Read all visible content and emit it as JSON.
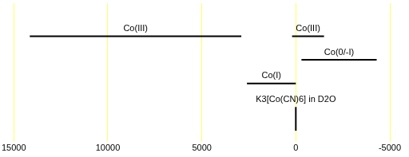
{
  "chart_data": {
    "type": "range",
    "rows": [
      [
        {
          "label": "Co(III)",
          "from": 14150,
          "to": 2900
        },
        {
          "label": "Co(III)",
          "from": 200,
          "to": -1500
        }
      ],
      [
        {
          "label": "Co(0/-I)",
          "from": -300,
          "to": -4300
        }
      ],
      [
        {
          "label": "Co(I)",
          "from": 2600,
          "to": 0
        }
      ]
    ],
    "reference": {
      "label": "K3[Co(CN)6] in D2O",
      "x": 0
    },
    "color": "#000000",
    "xlim": [
      15000,
      -5000
    ],
    "xticks": [
      15000,
      10000,
      5000,
      0,
      -5000
    ],
    "grid": true
  }
}
